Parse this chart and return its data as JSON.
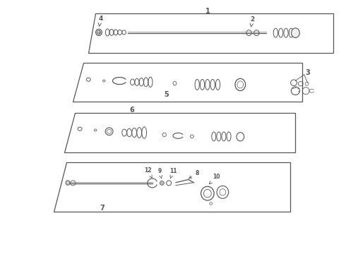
{
  "bg_color": "#ffffff",
  "line_color": "#555555",
  "panels": [
    {
      "label": "1",
      "xl": 0.24,
      "xr": 0.96,
      "yt": 0.95,
      "yb": 0.78,
      "skew": 0.1
    },
    {
      "label": "5",
      "xl": 0.2,
      "xr": 0.84,
      "yt": 0.74,
      "yb": 0.53,
      "skew": 0.1
    },
    {
      "label": "6",
      "xl": 0.18,
      "xr": 0.82,
      "yt": 0.52,
      "yb": 0.33,
      "skew": 0.1
    },
    {
      "label": "7",
      "xl": 0.16,
      "xr": 0.8,
      "yt": 0.32,
      "yb": 0.08,
      "skew": 0.1
    }
  ]
}
